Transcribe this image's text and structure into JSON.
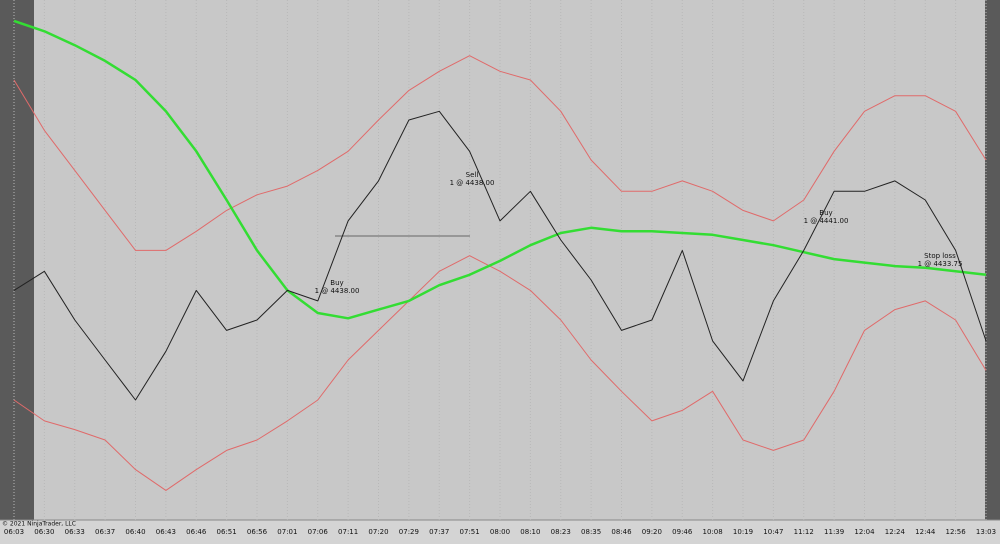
{
  "chart_data": {
    "type": "line",
    "categories": [
      "06:03",
      "06:30",
      "06:33",
      "06:37",
      "06:40",
      "06:43",
      "06:46",
      "06:51",
      "06:56",
      "07:01",
      "07:06",
      "07:11",
      "07:20",
      "07:29",
      "07:37",
      "07:51",
      "08:00",
      "08:10",
      "08:23",
      "08:35",
      "08:46",
      "09:20",
      "09:46",
      "10:08",
      "10:19",
      "10:47",
      "11:12",
      "11:39",
      "12:04",
      "12:24",
      "12:44",
      "12:56",
      "13:03"
    ],
    "ylim": [
      4421.7,
      4451.6
    ],
    "grid": true,
    "series": [
      {
        "color": "#e06a6a",
        "values": [
          4447.0,
          4444.1,
          4441.8,
          4439.5,
          4437.2,
          4437.2,
          4438.3,
          4439.5,
          4440.4,
          4440.9,
          4441.8,
          4442.9,
          4444.7,
          4446.4,
          4447.5,
          4448.4,
          4447.5,
          4447.0,
          4445.2,
          4442.4,
          4440.6,
          4440.6,
          4441.2,
          4440.6,
          4439.5,
          4438.9,
          4440.1,
          4442.9,
          4445.2,
          4446.1,
          4446.1,
          4445.2,
          4442.4
        ]
      },
      {
        "color": "#e06a6a",
        "values": [
          4428.6,
          4427.4,
          4426.9,
          4426.3,
          4424.6,
          4423.4,
          4424.6,
          4425.7,
          4426.3,
          4427.4,
          4428.6,
          4430.9,
          4432.6,
          4434.3,
          4436.0,
          4436.9,
          4436.0,
          4434.9,
          4433.2,
          4430.9,
          4429.1,
          4427.4,
          4428.0,
          4429.1,
          4426.3,
          4425.7,
          4426.3,
          4429.1,
          4432.6,
          4433.8,
          4434.3,
          4433.2,
          4430.3
        ]
      },
      {
        "color": "#33dd33",
        "values": [
          4450.4,
          4449.8,
          4449.0,
          4448.1,
          4447.0,
          4445.2,
          4442.9,
          4440.1,
          4437.2,
          4434.9,
          4433.6,
          4433.3,
          4433.8,
          4434.3,
          4435.2,
          4435.8,
          4436.6,
          4437.5,
          4438.2,
          4438.5,
          4438.3,
          4438.3,
          4438.2,
          4438.1,
          4437.8,
          4437.5,
          4437.1,
          4436.7,
          4436.5,
          4436.3,
          4436.2,
          4436.0,
          4435.8
        ]
      },
      {
        "color": "#222222",
        "values": [
          4434.9,
          4436.0,
          4433.2,
          4430.9,
          4428.6,
          4431.4,
          4434.9,
          4432.6,
          4433.2,
          4434.9,
          4434.3,
          4438.9,
          4441.2,
          4444.7,
          4445.2,
          4442.9,
          4438.9,
          4440.6,
          4437.8,
          4435.5,
          4432.6,
          4433.2,
          4437.2,
          4432.0,
          4429.7,
          4434.3,
          4437.2,
          4440.6,
          4440.6,
          4441.2,
          4440.1,
          4437.2,
          4432.0
        ]
      }
    ],
    "annotations": [
      {
        "label": "Buy",
        "detail": "1 @ 4438.00"
      },
      {
        "label": "Sell",
        "detail": "1 @ 4438.00"
      },
      {
        "label": "Buy",
        "detail": "1 @ 4441.00"
      },
      {
        "label": "Stop loss",
        "detail": "1 @ 4433.75"
      }
    ],
    "copyright": "© 2021 NinjaTrader, LLC"
  }
}
